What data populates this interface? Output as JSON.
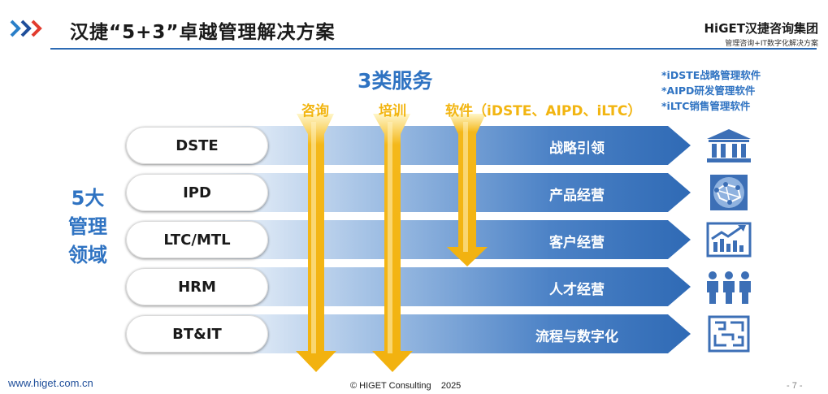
{
  "header": {
    "title": "汉捷“5+3”卓越管理解决方案",
    "brand_name": "HiGET汉捷咨询集团",
    "brand_tagline": "管理咨询+IT数字化解决方案"
  },
  "services": {
    "title": "3类服务",
    "items": [
      "咨询",
      "培训",
      "软件（iDSTE、AIPD、iLTC）"
    ],
    "software_notes": [
      "*iDSTE战略管理软件",
      "*AIPD研发管理软件",
      "*iLTC销售管理软件"
    ]
  },
  "domains": {
    "label_lines": [
      "5大",
      "管理",
      "领域"
    ],
    "rows": [
      {
        "name": "DSTE",
        "label": "战略引领",
        "icon": "bank-building-icon"
      },
      {
        "name": "IPD",
        "label": "产品经营",
        "icon": "network-globe-icon"
      },
      {
        "name": "LTC/MTL",
        "label": "客户经营",
        "icon": "growth-chart-icon"
      },
      {
        "name": "HRM",
        "label": "人才经营",
        "icon": "people-group-icon"
      },
      {
        "name": "BT&IT",
        "label": "流程与数字化",
        "icon": "maze-process-icon"
      }
    ]
  },
  "footer": {
    "website": "www.higet.com.cn",
    "copyright": "© HIGET Consulting    2025",
    "page": "- 7 -"
  },
  "colors": {
    "accent_blue": "#2f73c2",
    "arrow_blue": "#3e78bf",
    "gold": "#f4b81a",
    "chevron_blue": "#1f4e9a",
    "chevron_red": "#e23b2e"
  }
}
